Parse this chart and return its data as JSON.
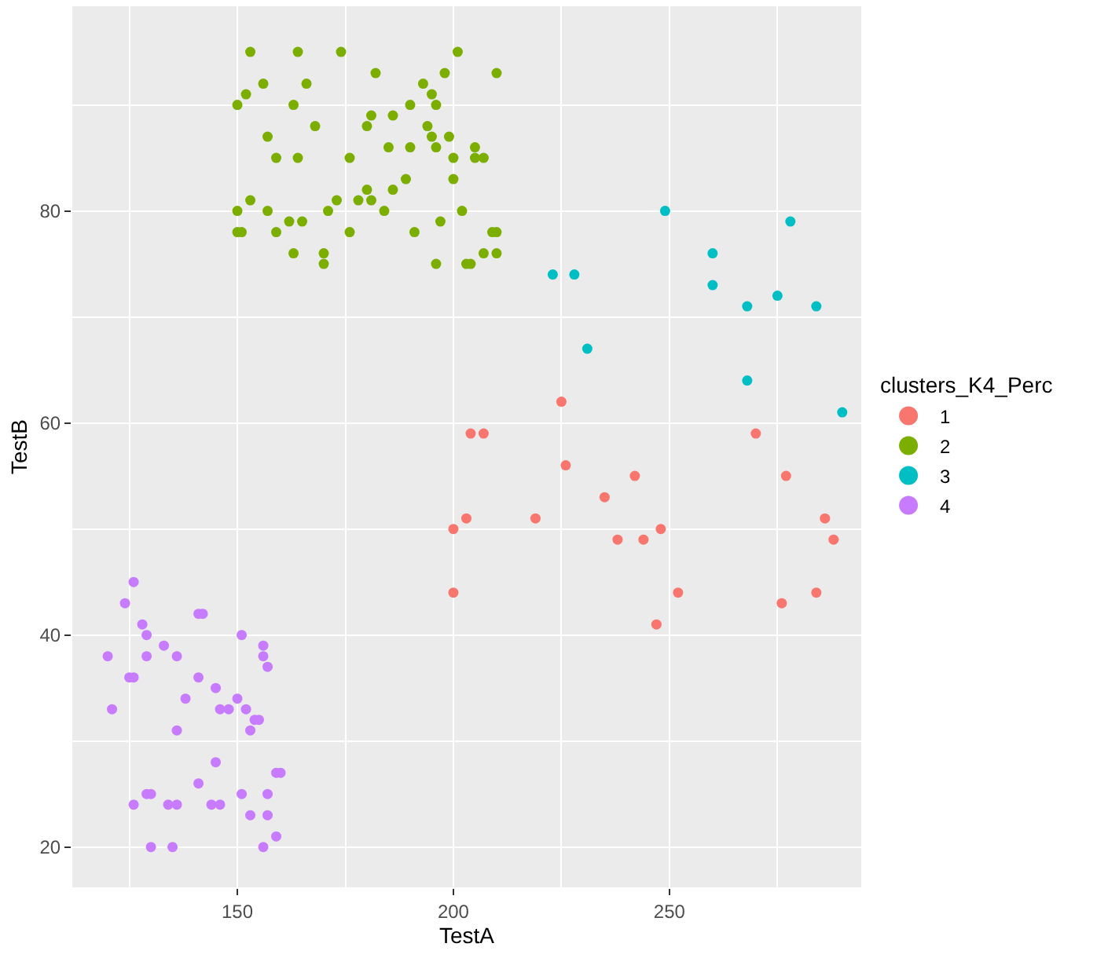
{
  "chart_data": {
    "type": "scatter",
    "xlabel": "TestA",
    "ylabel": "TestB",
    "legend_title": "clusters_K4_Perc",
    "xlim": [
      111.8,
      294.4
    ],
    "ylim": [
      16.2,
      99.3
    ],
    "xticks": [
      150,
      200,
      250
    ],
    "yticks": [
      20,
      40,
      60,
      80
    ],
    "grid": true,
    "legend": "right",
    "marker": "circle",
    "series": [
      {
        "name": "1",
        "color": "#f8766d",
        "x": [
          225,
          204,
          207,
          270,
          226,
          242,
          277,
          235,
          203,
          219,
          286,
          200,
          248,
          238,
          244,
          288,
          200,
          252,
          284,
          276,
          247
        ],
        "values": [
          62,
          59,
          59,
          59,
          56,
          55,
          55,
          53,
          51,
          51,
          51,
          50,
          50,
          49,
          49,
          49,
          44,
          44,
          44,
          43,
          41
        ]
      },
      {
        "name": "2",
        "color": "#7cae00",
        "x": [
          153,
          164,
          174,
          201,
          182,
          198,
          210,
          156,
          166,
          193,
          152,
          195,
          150,
          163,
          190,
          196,
          181,
          186,
          168,
          180,
          194,
          157,
          195,
          199,
          185,
          190,
          196,
          205,
          159,
          164,
          176,
          200,
          205,
          207,
          189,
          200,
          180,
          186,
          153,
          173,
          178,
          181,
          150,
          157,
          171,
          184,
          202,
          162,
          165,
          197,
          150,
          151,
          159,
          176,
          191,
          209,
          210,
          163,
          170,
          207,
          210,
          170,
          196,
          203,
          204
        ],
        "values": [
          95,
          95,
          95,
          95,
          93,
          93,
          93,
          92,
          92,
          92,
          91,
          91,
          90,
          90,
          90,
          90,
          89,
          89,
          88,
          88,
          88,
          87,
          87,
          87,
          86,
          86,
          86,
          86,
          85,
          85,
          85,
          85,
          85,
          85,
          83,
          83,
          82,
          82,
          81,
          81,
          81,
          81,
          80,
          80,
          80,
          80,
          80,
          79,
          79,
          79,
          78,
          78,
          78,
          78,
          78,
          78,
          78,
          76,
          76,
          76,
          76,
          75,
          75,
          75,
          75
        ]
      },
      {
        "name": "3",
        "color": "#00bfc4",
        "x": [
          249,
          278,
          260,
          223,
          228,
          260,
          275,
          268,
          284,
          231,
          268,
          290
        ],
        "values": [
          80,
          79,
          76,
          74,
          74,
          73,
          72,
          71,
          71,
          67,
          64,
          61
        ]
      },
      {
        "name": "4",
        "color": "#c77cff",
        "x": [
          126,
          124,
          141,
          142,
          128,
          129,
          151,
          133,
          156,
          120,
          129,
          136,
          156,
          157,
          125,
          126,
          141,
          145,
          121,
          138,
          150,
          146,
          147,
          148,
          152,
          154,
          155,
          136,
          153,
          145,
          159,
          160,
          141,
          129,
          130,
          151,
          157,
          126,
          134,
          136,
          144,
          146,
          153,
          157,
          159,
          130,
          135,
          156
        ],
        "values": [
          45,
          43,
          42,
          42,
          41,
          40,
          40,
          39,
          39,
          38,
          38,
          38,
          38,
          37,
          36,
          36,
          36,
          35,
          33,
          34,
          34,
          33,
          null,
          33,
          33,
          32,
          32,
          31,
          31,
          28,
          27,
          27,
          26,
          25,
          25,
          25,
          25,
          24,
          24,
          24,
          24,
          24,
          23,
          23,
          21,
          20,
          20,
          20
        ]
      }
    ]
  }
}
